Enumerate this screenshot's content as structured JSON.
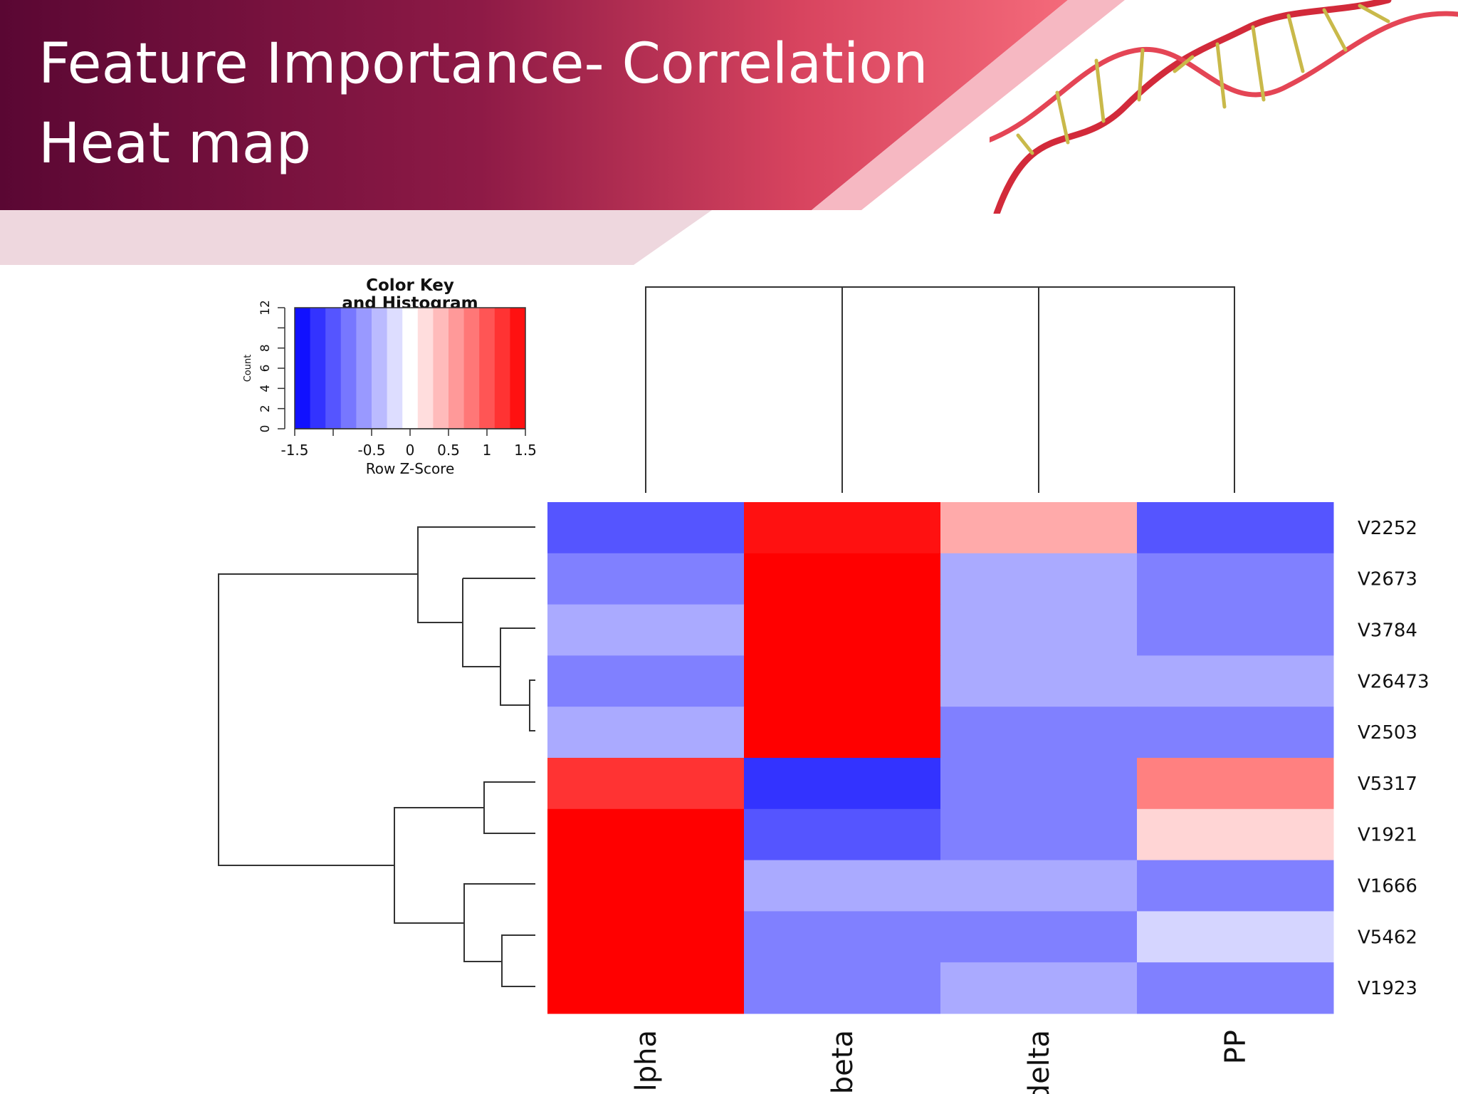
{
  "slide": {
    "title_line1": "Feature Importance- Correlation",
    "title_line2": "Heat map"
  },
  "colors": {
    "banner_dark": "#5c0a34",
    "banner_mid": "#b02a55",
    "banner_light": "#f06478",
    "scale_low": "#0000ff",
    "scale_mid": "#ffffff",
    "scale_high": "#ff0000"
  },
  "decoration": {
    "icon": "dna-helix-icon"
  },
  "chart_data": {
    "type": "heatmap",
    "color_key": {
      "title_line1": "Color Key",
      "title_line2": "and Histogram",
      "xlabel": "Row Z-Score",
      "ylabel": "Count",
      "x_ticks": [
        "-1.5",
        "-0.5",
        "0",
        "0.5",
        "1",
        "1.5"
      ],
      "x_tick_values": [
        -1.5,
        -0.5,
        0,
        0.5,
        1,
        1.5
      ],
      "y_ticks": [
        "0",
        "2",
        "4",
        "6",
        "8",
        "12"
      ],
      "y_tick_values": [
        0,
        2,
        4,
        6,
        8,
        12
      ],
      "xlim": [
        -1.5,
        1.5
      ],
      "ylim": [
        0,
        12
      ],
      "bins": 15
    },
    "columns": [
      "alpha",
      "beta",
      "delta",
      "PP"
    ],
    "rows": [
      "V2252",
      "V2673",
      "V3784",
      "V26473",
      "V2503",
      "V5317",
      "V1921",
      "V1666",
      "V5462",
      "V1923"
    ],
    "values": [
      [
        -1.0,
        1.4,
        0.5,
        -1.0
      ],
      [
        -0.75,
        1.5,
        -0.5,
        -0.75
      ],
      [
        -0.5,
        1.5,
        -0.5,
        -0.75
      ],
      [
        -0.75,
        1.5,
        -0.5,
        -0.5
      ],
      [
        -0.5,
        1.5,
        -0.75,
        -0.75
      ],
      [
        1.2,
        -1.2,
        -0.75,
        0.75
      ],
      [
        1.5,
        -1.0,
        -0.75,
        0.25
      ],
      [
        1.5,
        -0.5,
        -0.5,
        -0.75
      ],
      [
        1.5,
        -0.75,
        -0.75,
        -0.25
      ],
      [
        1.5,
        -0.75,
        -0.5,
        -0.75
      ]
    ],
    "value_range": [
      -1.5,
      1.5
    ]
  }
}
